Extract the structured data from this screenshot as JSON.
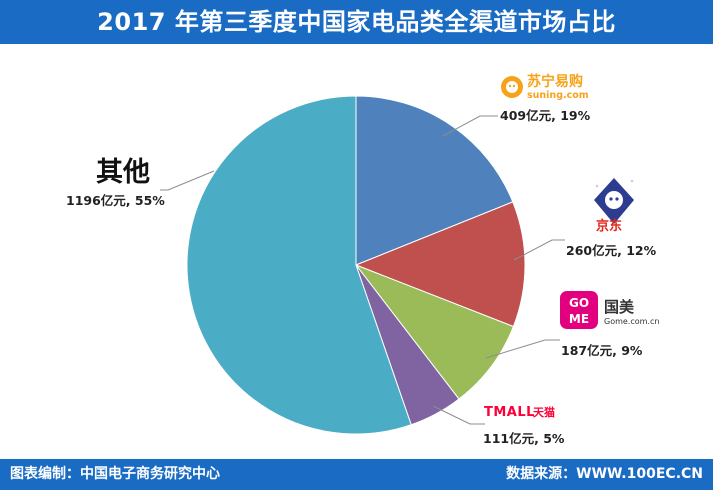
{
  "header": {
    "title": "2017 年第三季度中国家电品类全渠道市场占比"
  },
  "footer": {
    "left": "图表编制：中国电子商务研究中心",
    "right": "数据来源：WWW.100EC.CN"
  },
  "chart_data": {
    "type": "pie",
    "unit": "亿元",
    "slices": [
      {
        "key": "suning",
        "value": 409,
        "percent": 19,
        "label": "409亿元, 19%",
        "color": "#4f81bd"
      },
      {
        "key": "jd",
        "value": 260,
        "percent": 12,
        "label": "260亿元, 12%",
        "color": "#c0504d"
      },
      {
        "key": "gome",
        "value": 187,
        "percent": 9,
        "label": "187亿元, 9%",
        "color": "#9bbb59"
      },
      {
        "key": "tmall",
        "value": 111,
        "percent": 5,
        "label": "111亿元, 5%",
        "color": "#8064a2"
      },
      {
        "key": "other",
        "value": 1196,
        "percent": 55,
        "label": "1196亿元, 55%",
        "color": "#4bacc6"
      }
    ]
  },
  "brands": {
    "suning": {
      "name": "苏宁易购",
      "domain": "suning.com",
      "color": "#f7a21b"
    },
    "jd": {
      "name": "京东",
      "color": "#e1251b"
    },
    "gome": {
      "badge_top": "GO",
      "badge_bottom": "ME",
      "name": "国美",
      "domain": "Gome.com.cn",
      "color": "#e3007f"
    },
    "tmall": {
      "name_latin": "TMALL",
      "name_cn": "天猫",
      "color": "#ff0036"
    },
    "other": {
      "name": "其他"
    }
  }
}
